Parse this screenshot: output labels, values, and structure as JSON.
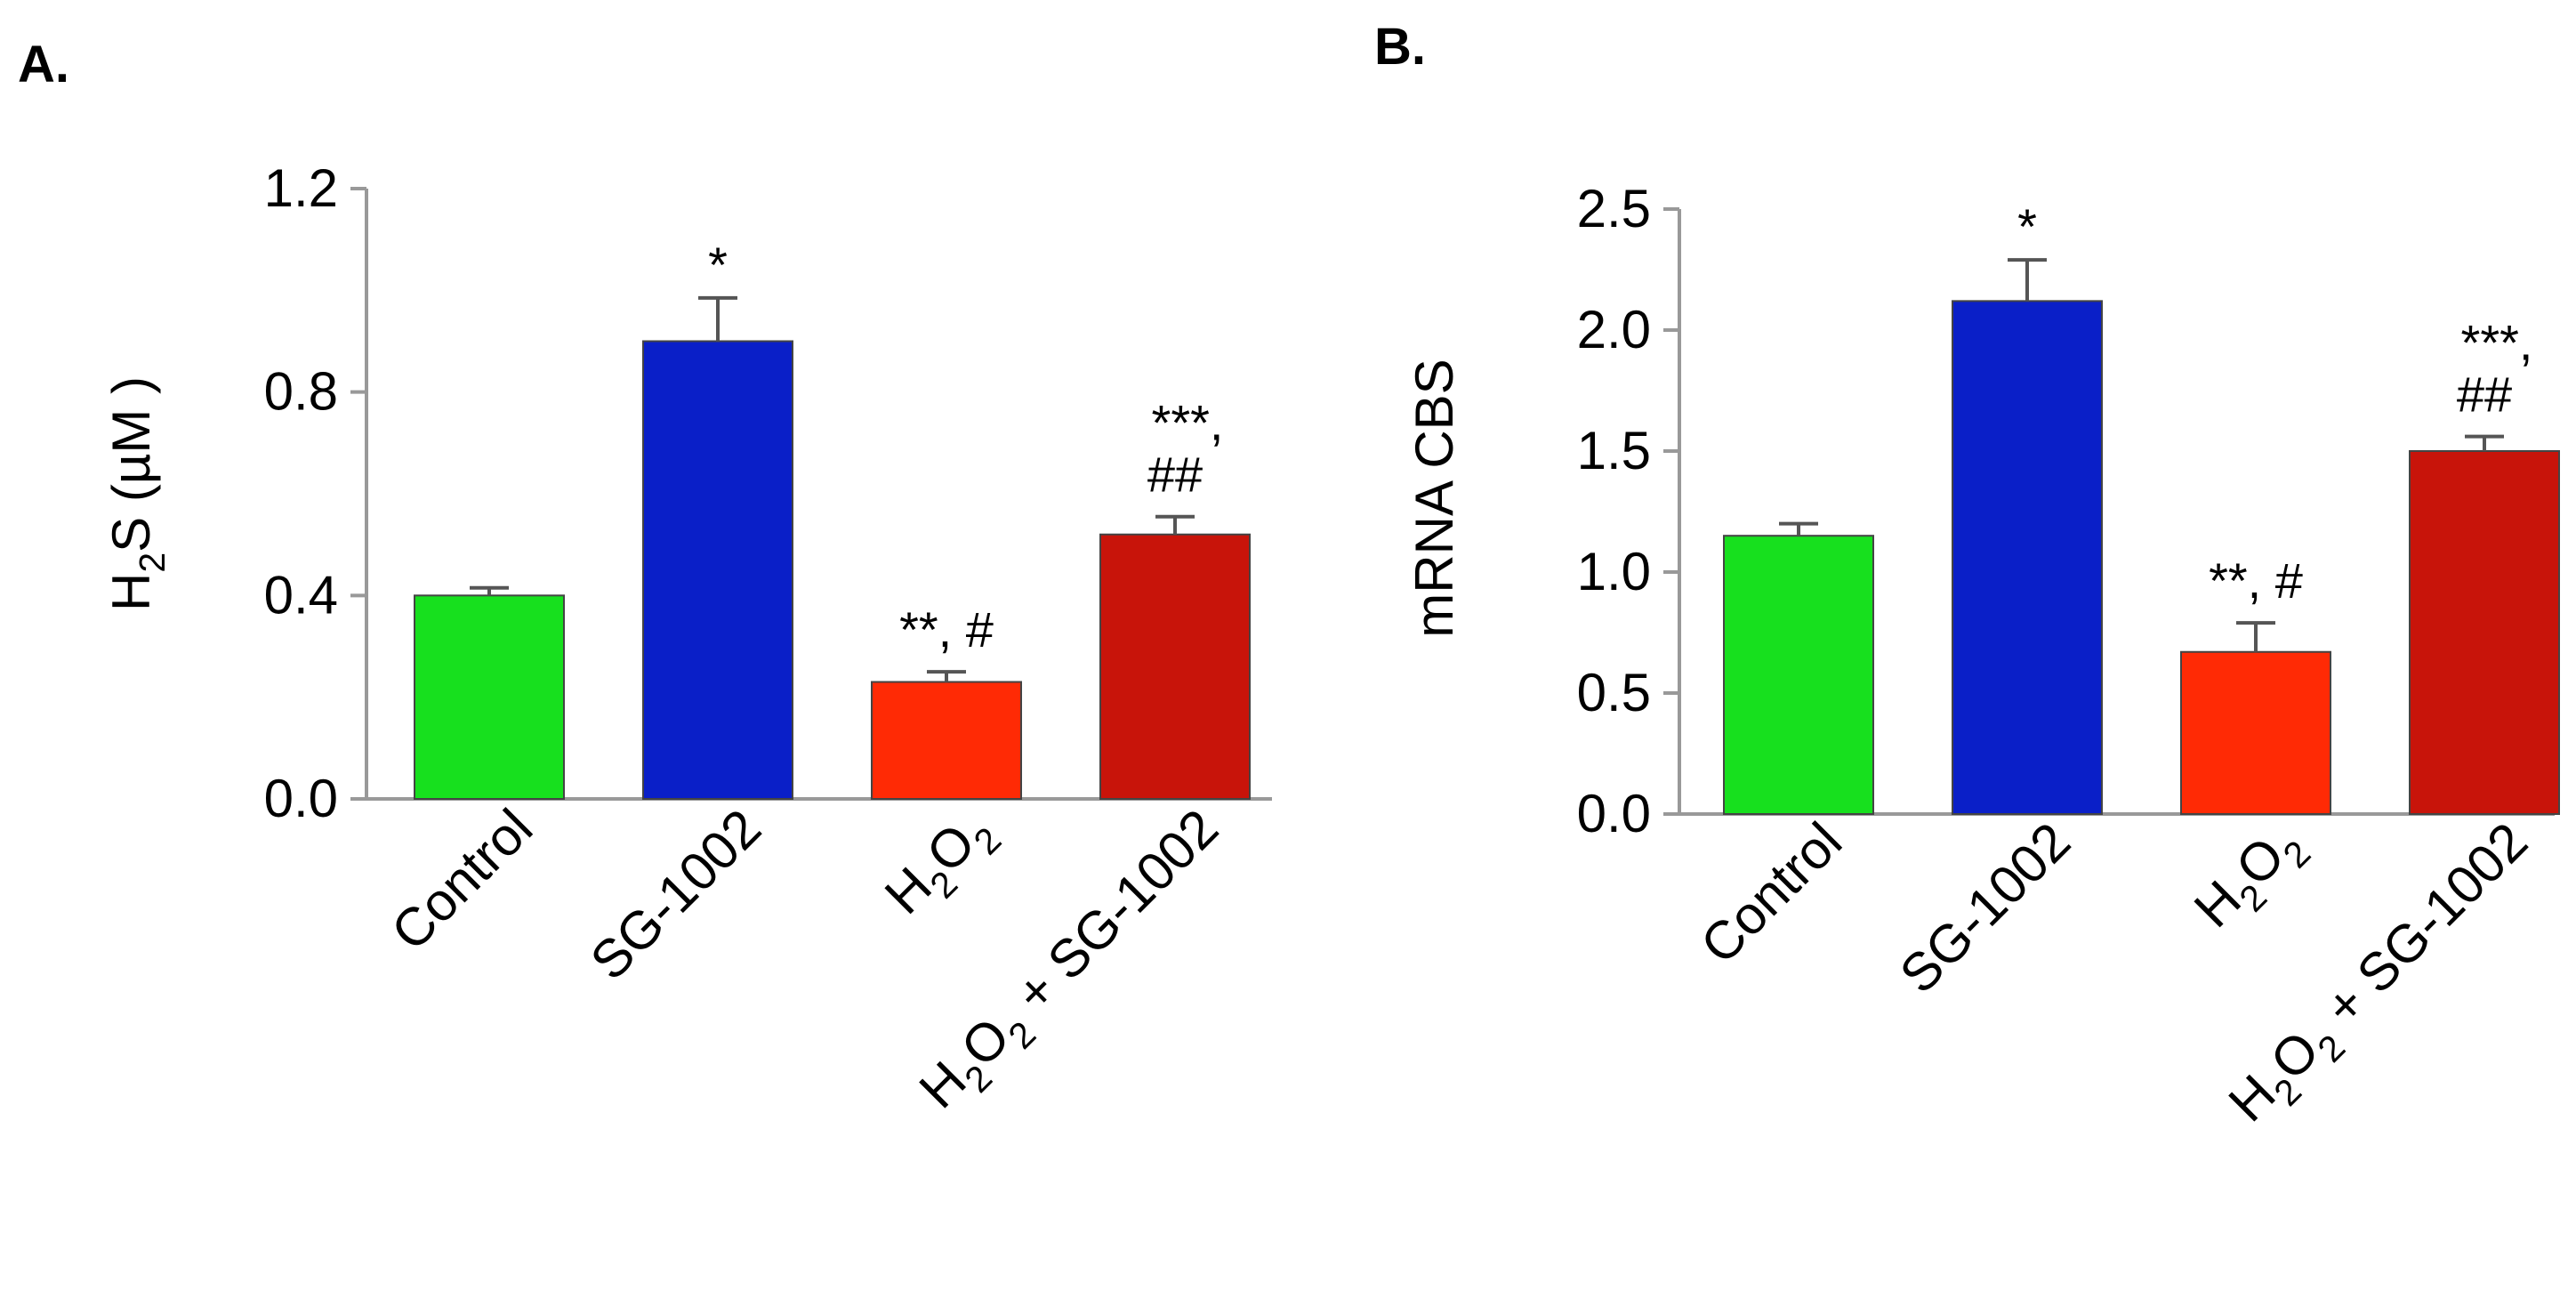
{
  "figure": {
    "panels": [
      {
        "id": "A",
        "label": "A."
      },
      {
        "id": "B",
        "label": "B."
      }
    ]
  },
  "chart_data": [
    {
      "panel": "A.",
      "type": "bar",
      "ylabel": "H2S (µM )",
      "ylabel_parts": [
        {
          "t": "H"
        },
        {
          "t": "2",
          "sub": true
        },
        {
          "t": "S (µM )"
        }
      ],
      "ylim": [
        0,
        1.2
      ],
      "yticks": [
        0.0,
        0.4,
        0.8,
        1.2
      ],
      "ytick_labels": [
        "0.0",
        "0.4",
        "0.8",
        "1.2"
      ],
      "categories": [
        "Control",
        "SG-1002",
        "H2O2",
        "H2O2 + SG-1002"
      ],
      "category_parts": [
        [
          {
            "t": "Control"
          }
        ],
        [
          {
            "t": "SG-1002"
          }
        ],
        [
          {
            "t": "H"
          },
          {
            "t": "2",
            "sub": true
          },
          {
            "t": "O"
          },
          {
            "t": "2",
            "sub": true
          }
        ],
        [
          {
            "t": "H"
          },
          {
            "t": "2",
            "sub": true
          },
          {
            "t": "O"
          },
          {
            "t": "2",
            "sub": true
          },
          {
            "t": " + SG-1002"
          }
        ]
      ],
      "values": [
        0.4,
        0.9,
        0.23,
        0.52
      ],
      "errors": [
        0.015,
        0.085,
        0.02,
        0.035
      ],
      "colors": [
        "#17e01e",
        "#0a1fc8",
        "#ff2a05",
        "#c8140a"
      ],
      "annotations": [
        [],
        [
          "*"
        ],
        [
          "**, #"
        ],
        [
          "***,",
          "##"
        ]
      ]
    },
    {
      "panel": "B.",
      "type": "bar",
      "ylabel": "mRNA CBS",
      "ylabel_parts": [
        {
          "t": "mRNA CBS"
        }
      ],
      "ylim": [
        0,
        2.5
      ],
      "yticks": [
        0.0,
        0.5,
        1.0,
        1.5,
        2.0,
        2.5
      ],
      "ytick_labels": [
        "0.0",
        "0.5",
        "1.0",
        "1.5",
        "2.0",
        "2.5"
      ],
      "categories": [
        "Control",
        "SG-1002",
        "H2O2",
        "H2O2 + SG-1002"
      ],
      "category_parts": [
        [
          {
            "t": "Control"
          }
        ],
        [
          {
            "t": "SG-1002"
          }
        ],
        [
          {
            "t": "H"
          },
          {
            "t": "2",
            "sub": true
          },
          {
            "t": "O"
          },
          {
            "t": "2",
            "sub": true
          }
        ],
        [
          {
            "t": "H"
          },
          {
            "t": "2",
            "sub": true
          },
          {
            "t": "O"
          },
          {
            "t": "2",
            "sub": true
          },
          {
            "t": " + SG-1002"
          }
        ]
      ],
      "values": [
        1.15,
        2.12,
        0.67,
        1.5
      ],
      "errors": [
        0.05,
        0.17,
        0.12,
        0.06
      ],
      "colors": [
        "#17e01e",
        "#0a1fc8",
        "#ff2a05",
        "#c8140a"
      ],
      "annotations": [
        [],
        [
          "*"
        ],
        [
          "**, #"
        ],
        [
          "***,",
          "##"
        ]
      ]
    }
  ]
}
